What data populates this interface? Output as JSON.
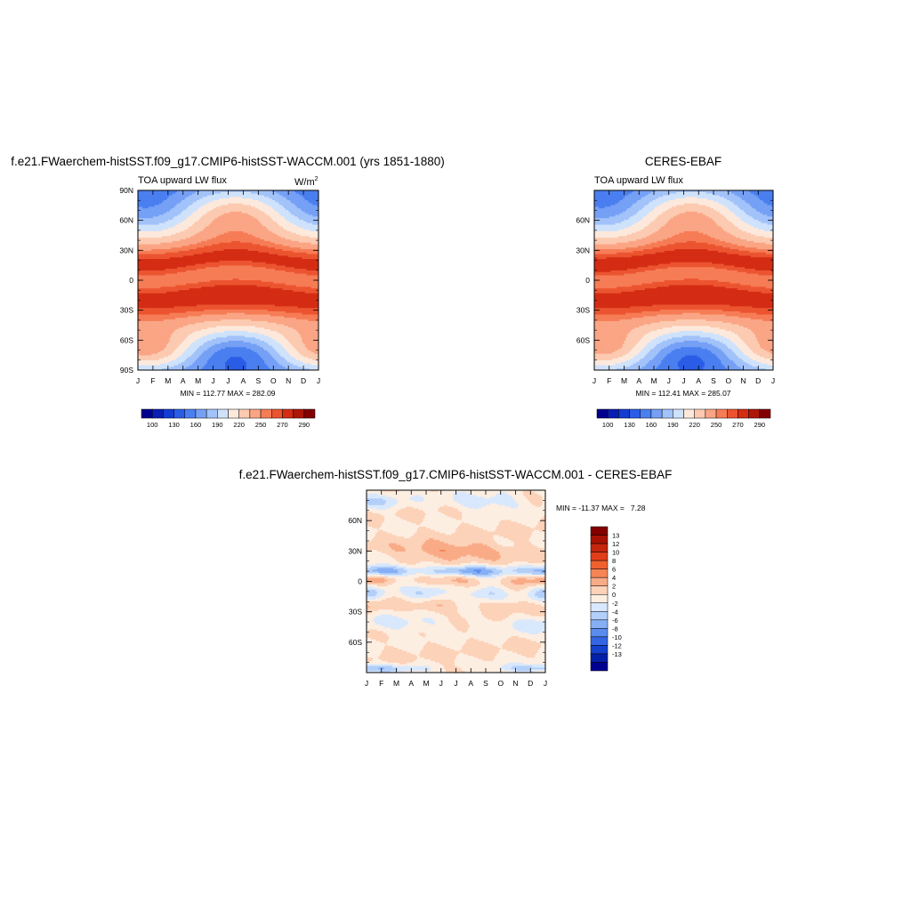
{
  "chart_data": [
    {
      "type": "heatmap",
      "id": "model",
      "title": "f.e21.FWaerchem-histSST.f09_g17.CMIP6-histSST-WACCM.001 (yrs 1851-1880)",
      "variable": "TOA upward LW flux",
      "units_base": "W/m",
      "units_exp": "2",
      "x_ticklabels": [
        "J",
        "F",
        "M",
        "A",
        "M",
        "J",
        "J",
        "A",
        "S",
        "O",
        "N",
        "D",
        "J"
      ],
      "y_ticklabels": [
        "90N",
        "60N",
        "30N",
        "0",
        "30S",
        "60S",
        "90S"
      ],
      "y_tickvalues": [
        90,
        60,
        30,
        0,
        -30,
        -60,
        -90
      ],
      "ylim": [
        -90,
        90
      ],
      "stats_text": "MIN = 112.77 MAX = 282.09",
      "min": 112.77,
      "max": 282.09
    },
    {
      "type": "heatmap",
      "id": "obs",
      "title": "CERES-EBAF",
      "variable": "TOA upward LW flux",
      "x_ticklabels": [
        "J",
        "F",
        "M",
        "A",
        "M",
        "J",
        "J",
        "A",
        "S",
        "O",
        "N",
        "D",
        "J"
      ],
      "y_ticklabels": [
        "60N",
        "30N",
        "0",
        "30S",
        "60S"
      ],
      "y_tickvalues": [
        60,
        30,
        0,
        -30,
        -60
      ],
      "ylim": [
        -90,
        90
      ],
      "stats_text": "MIN = 112.41 MAX = 285.07",
      "min": 112.41,
      "max": 285.07
    },
    {
      "type": "heatmap",
      "id": "diff",
      "title": "f.e21.FWaerchem-histSST.f09_g17.CMIP6-histSST-WACCM.001 - CERES-EBAF",
      "x_ticklabels": [
        "J",
        "F",
        "M",
        "A",
        "M",
        "J",
        "J",
        "A",
        "S",
        "O",
        "N",
        "D",
        "J"
      ],
      "y_ticklabels": [
        "60N",
        "30N",
        "0",
        "30S",
        "60S"
      ],
      "y_tickvalues": [
        60,
        30,
        0,
        -30,
        -60
      ],
      "ylim": [
        -90,
        90
      ],
      "stats_text": "MIN = -11.37 MAX =   7.28",
      "min": -11.37,
      "max": 7.28
    }
  ],
  "colorbars": {
    "abs": {
      "labels": [
        "100",
        "130",
        "160",
        "190",
        "220",
        "250",
        "270",
        "290"
      ],
      "colors": [
        "#00008f",
        "#0a1eb4",
        "#143cd2",
        "#2a5de6",
        "#4a7ff0",
        "#75a0f5",
        "#a2c2fa",
        "#cfe2fc",
        "#fde9dc",
        "#fccab0",
        "#faa585",
        "#f67c56",
        "#ec5430",
        "#d42d14",
        "#ad1708",
        "#820000"
      ]
    },
    "diff": {
      "labels": [
        "13",
        "12",
        "10",
        "8",
        "6",
        "4",
        "2",
        "0",
        "-2",
        "-4",
        "-6",
        "-8",
        "-10",
        "-12",
        "-13"
      ],
      "colors": [
        "#820000",
        "#a81205",
        "#c6260c",
        "#e03e18",
        "#f0602f",
        "#f68455",
        "#f9ab87",
        "#fcd2b8",
        "#fdeee2",
        "#d9e8fc",
        "#b2cff9",
        "#86aff5",
        "#5a8cee",
        "#3465e3",
        "#1540cc",
        "#0420a8",
        "#000090"
      ]
    }
  }
}
